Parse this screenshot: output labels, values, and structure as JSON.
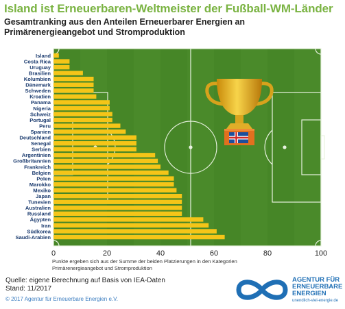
{
  "title": "Island ist Erneuerbaren-Weltmeister der Fußball-WM-Länder",
  "subtitle": "Gesamtranking aus den Anteilen Erneuerbarer Energien an Primärenergieangebot und Stromproduktion",
  "note": "Punkte ergeben sich aus der Summe der beiden Platzierungen in den Kategorien Primärenergieangebot und Stromproduktion",
  "source_line1": "Quelle: eigene Berechnung auf Basis von IEA-Daten",
  "source_line2": "Stand: 11/2017",
  "copyright": "© 2017 Agentur für Erneuerbare Energien e.V.",
  "logo": {
    "line1": "AGENTUR FÜR",
    "line2": "ERNEUERBARE",
    "line3": "ENERGIEN",
    "url": "unendlich-viel-energie.de"
  },
  "colors": {
    "bar": "#f5c518",
    "pitch": "#4a8a2a",
    "pitch_stripe": "#3f7d22",
    "title": "#7ab342",
    "brand_blue": "#1f6fb5"
  },
  "icons": [
    "trophy-icon",
    "iceland-flag-icon",
    "aee-logo-icon"
  ],
  "chart_data": {
    "type": "bar",
    "orientation": "horizontal",
    "categories": [
      "Island",
      "Costa Rica",
      "Uruguay",
      "Brasilien",
      "Kolumbien",
      "Dänemark",
      "Schweden",
      "Kroatien",
      "Panama",
      "Nigeria",
      "Schweiz",
      "Portugal",
      "Peru",
      "Spanien",
      "Deutschland",
      "Senegal",
      "Serbien",
      "Argentinien",
      "Großbritannien",
      "Frankreich",
      "Belgien",
      "Polen",
      "Marokko",
      "Mexiko",
      "Japan",
      "Tunesien",
      "Australien",
      "Russland",
      "Ägypten",
      "Iran",
      "Südkorea",
      "Saudi-Arabien"
    ],
    "values": [
      2,
      6,
      6,
      11,
      15,
      15,
      15,
      16,
      21,
      21,
      22,
      22,
      25,
      27,
      31,
      31,
      31,
      38,
      39,
      40,
      43,
      45,
      45,
      46,
      48,
      48,
      48,
      48,
      56,
      58,
      61,
      64
    ],
    "xlim": [
      0,
      100
    ],
    "xticks": [
      0,
      20,
      40,
      60,
      80,
      100
    ],
    "grid": false
  }
}
